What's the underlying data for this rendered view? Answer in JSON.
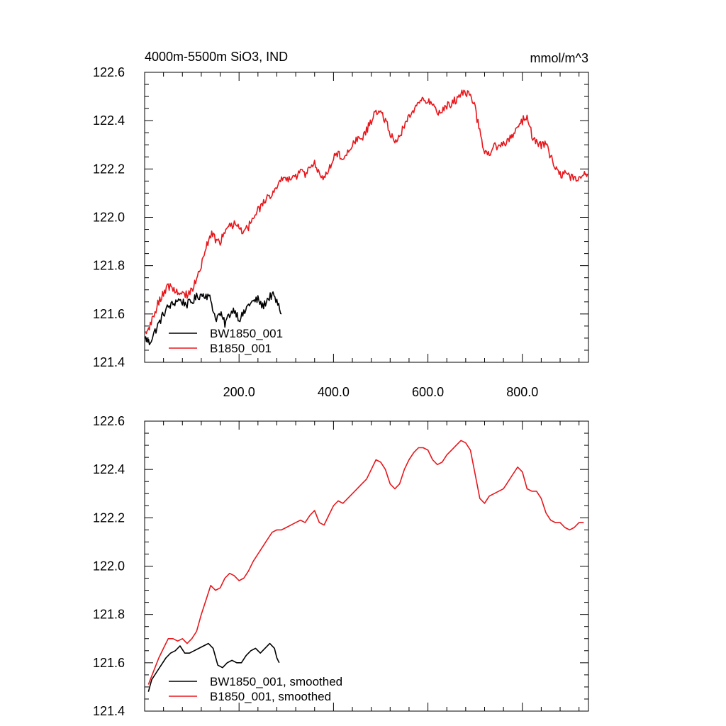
{
  "chart_data": [
    {
      "type": "line",
      "title": "4000m-5500m SiO3, IND",
      "units": "mmol/m^3",
      "xlim": [
        0,
        940
      ],
      "ylim": [
        121.4,
        122.6
      ],
      "xticks": [
        200,
        400,
        600,
        800
      ],
      "xtick_labels": [
        "200.0",
        "400.0",
        "600.0",
        "800.0"
      ],
      "yticks": [
        121.4,
        121.6,
        121.8,
        122.0,
        122.2,
        122.4,
        122.6
      ],
      "ytick_labels": [
        "121.4",
        "121.6",
        "121.8",
        "122.0",
        "122.2",
        "122.4",
        "122.6"
      ],
      "legend_position": "bottom-left",
      "grid": false,
      "series": [
        {
          "name": "BW1850_001",
          "color": "#000000",
          "noisy": true,
          "x": [
            2,
            10,
            20,
            30,
            40,
            50,
            60,
            70,
            80,
            90,
            100,
            110,
            120,
            130,
            140,
            150,
            160,
            170,
            180,
            190,
            200,
            210,
            220,
            230,
            240,
            250,
            260,
            270,
            280,
            290
          ],
          "y": [
            121.5,
            121.48,
            121.52,
            121.56,
            121.6,
            121.63,
            121.64,
            121.66,
            121.65,
            121.64,
            121.65,
            121.67,
            121.68,
            121.68,
            121.66,
            121.58,
            121.6,
            121.56,
            121.6,
            121.62,
            121.58,
            121.6,
            121.64,
            121.65,
            121.66,
            121.63,
            121.66,
            121.68,
            121.65,
            121.6
          ]
        },
        {
          "name": "B1850_001",
          "color": "#e8161b",
          "noisy": true,
          "x": [
            2,
            10,
            20,
            30,
            40,
            50,
            60,
            70,
            80,
            90,
            100,
            110,
            120,
            130,
            140,
            150,
            160,
            170,
            180,
            190,
            200,
            210,
            220,
            230,
            240,
            250,
            260,
            270,
            280,
            290,
            300,
            310,
            320,
            330,
            340,
            350,
            360,
            370,
            380,
            390,
            400,
            410,
            420,
            430,
            440,
            450,
            460,
            470,
            480,
            490,
            500,
            510,
            520,
            530,
            540,
            550,
            560,
            570,
            580,
            590,
            600,
            610,
            620,
            630,
            640,
            650,
            660,
            670,
            680,
            690,
            700,
            710,
            720,
            730,
            740,
            750,
            760,
            770,
            780,
            790,
            800,
            810,
            820,
            830,
            840,
            850,
            860,
            870,
            880,
            890,
            900,
            910,
            920,
            930,
            938
          ],
          "y": [
            121.52,
            121.55,
            121.6,
            121.65,
            121.69,
            121.71,
            121.71,
            121.69,
            121.68,
            121.68,
            121.7,
            121.75,
            121.8,
            121.88,
            121.93,
            121.91,
            121.9,
            121.95,
            121.97,
            121.97,
            121.95,
            121.94,
            121.96,
            122.0,
            122.03,
            122.05,
            122.08,
            122.1,
            122.13,
            122.15,
            122.15,
            122.16,
            122.17,
            122.19,
            122.18,
            122.2,
            122.22,
            122.18,
            122.17,
            122.2,
            122.25,
            122.26,
            122.25,
            122.27,
            122.3,
            122.32,
            122.33,
            122.36,
            122.4,
            122.44,
            122.44,
            122.4,
            122.35,
            122.31,
            122.33,
            122.38,
            122.42,
            122.45,
            122.48,
            122.49,
            122.48,
            122.46,
            122.43,
            122.44,
            122.46,
            122.47,
            122.49,
            122.51,
            122.52,
            122.5,
            122.45,
            122.35,
            122.26,
            122.27,
            122.29,
            122.3,
            122.3,
            122.32,
            122.34,
            122.37,
            122.4,
            122.42,
            122.34,
            122.31,
            122.3,
            122.3,
            122.25,
            122.2,
            122.18,
            122.18,
            122.17,
            122.16,
            122.16,
            122.18,
            122.18
          ]
        }
      ]
    },
    {
      "type": "line",
      "title": "",
      "xlim": [
        0,
        940
      ],
      "ylim": [
        121.4,
        122.6
      ],
      "xticks": [
        200,
        400,
        600,
        800
      ],
      "xtick_labels": [],
      "yticks": [
        121.4,
        121.6,
        121.8,
        122.0,
        122.2,
        122.4,
        122.6
      ],
      "ytick_labels": [
        "121.4",
        "121.6",
        "121.8",
        "122.0",
        "122.2",
        "122.4",
        "122.6"
      ],
      "legend_position": "bottom-left",
      "grid": false,
      "series": [
        {
          "name": "BW1850_001, smoothed",
          "color": "#000000",
          "noisy": false,
          "x": [
            8,
            15,
            25,
            35,
            45,
            55,
            65,
            75,
            85,
            95,
            105,
            115,
            125,
            135,
            145,
            155,
            165,
            175,
            185,
            195,
            205,
            215,
            225,
            235,
            245,
            255,
            265,
            275,
            280,
            285
          ],
          "y": [
            121.48,
            121.53,
            121.56,
            121.59,
            121.62,
            121.64,
            121.65,
            121.67,
            121.64,
            121.64,
            121.65,
            121.66,
            121.67,
            121.68,
            121.66,
            121.59,
            121.58,
            121.6,
            121.61,
            121.6,
            121.6,
            121.63,
            121.65,
            121.66,
            121.64,
            121.66,
            121.68,
            121.66,
            121.62,
            121.6
          ]
        },
        {
          "name": "B1850_001, smoothed",
          "color": "#e8161b",
          "noisy": false,
          "x": [
            8,
            20,
            30,
            40,
            50,
            60,
            70,
            80,
            90,
            100,
            110,
            120,
            130,
            140,
            150,
            160,
            170,
            180,
            190,
            200,
            210,
            220,
            230,
            240,
            250,
            260,
            270,
            280,
            290,
            300,
            310,
            320,
            330,
            340,
            350,
            360,
            370,
            380,
            390,
            400,
            410,
            420,
            430,
            440,
            450,
            460,
            470,
            480,
            490,
            500,
            510,
            520,
            530,
            540,
            550,
            560,
            570,
            580,
            590,
            600,
            610,
            620,
            630,
            640,
            650,
            660,
            670,
            680,
            690,
            700,
            710,
            720,
            730,
            740,
            750,
            760,
            770,
            780,
            790,
            800,
            810,
            820,
            830,
            840,
            850,
            860,
            870,
            880,
            890,
            900,
            910,
            920,
            930
          ],
          "y": [
            121.51,
            121.57,
            121.62,
            121.66,
            121.7,
            121.7,
            121.69,
            121.7,
            121.68,
            121.7,
            121.73,
            121.8,
            121.86,
            121.92,
            121.9,
            121.91,
            121.95,
            121.97,
            121.96,
            121.94,
            121.95,
            121.98,
            122.02,
            122.05,
            122.08,
            122.11,
            122.14,
            122.15,
            122.15,
            122.16,
            122.17,
            122.18,
            122.19,
            122.18,
            122.21,
            122.23,
            122.18,
            122.17,
            122.21,
            122.25,
            122.27,
            122.26,
            122.28,
            122.3,
            122.32,
            122.34,
            122.36,
            122.4,
            122.44,
            122.43,
            122.4,
            122.34,
            122.32,
            122.34,
            122.4,
            122.44,
            122.47,
            122.49,
            122.49,
            122.48,
            122.44,
            122.42,
            122.43,
            122.46,
            122.48,
            122.5,
            122.52,
            122.51,
            122.48,
            122.38,
            122.28,
            122.26,
            122.29,
            122.3,
            122.31,
            122.32,
            122.35,
            122.38,
            122.41,
            122.39,
            122.32,
            122.31,
            122.31,
            122.28,
            122.22,
            122.19,
            122.18,
            122.18,
            122.16,
            122.15,
            122.16,
            122.18,
            122.18
          ]
        }
      ]
    }
  ]
}
